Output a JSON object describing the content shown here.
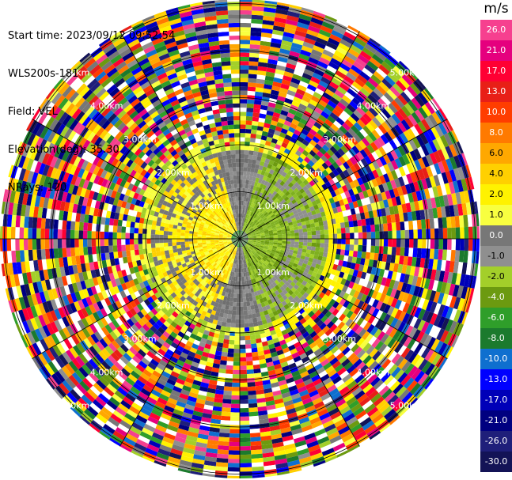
{
  "header": {
    "start_time": "Start time: 2023/09/12 09:52:54",
    "instrument": "WLS200s-181",
    "field": "Field: VEL",
    "elevation": "Elevation(deg): 35.30",
    "nrays": "NRays: 120"
  },
  "colorbar": {
    "unit": "m/s",
    "ticks": [
      "26.0",
      "21.0",
      "17.0",
      "13.0",
      "10.0",
      "8.0",
      "6.0",
      "4.0",
      "2.0",
      "1.0",
      "0.0",
      "-1.0",
      "-2.0",
      "-4.0",
      "-6.0",
      "-8.0",
      "-10.0",
      "-13.0",
      "-17.0",
      "-21.0",
      "-26.0",
      "-30.0"
    ],
    "colors": [
      "#f6408f",
      "#e5007e",
      "#ff0033",
      "#e81f17",
      "#ff3d00",
      "#ff7a00",
      "#ffa800",
      "#ffd000",
      "#fff200",
      "#f8ff40",
      "#777777",
      "#8f8f8f",
      "#a3cf2a",
      "#6c9a10",
      "#2f9e2a",
      "#1b7a2d",
      "#0f6fcf",
      "#0000ff",
      "#0000b8",
      "#000080",
      "#1f1f7a",
      "#131356"
    ]
  },
  "chart_data": {
    "type": "ppi",
    "field": "VEL",
    "units": "m/s",
    "n_rays": 120,
    "elevation_deg": 35.3,
    "range_rings_km": [
      1.0,
      2.0,
      3.0,
      4.0,
      5.0
    ],
    "ring_label": "km",
    "ring_labels": [
      "1.00km",
      "2.00km",
      "3.00km",
      "4.00km",
      "5.00km"
    ],
    "spokes_deg": [
      0,
      30,
      60,
      90,
      120,
      150,
      180,
      210,
      240,
      270,
      300,
      330
    ],
    "inner_zone": {
      "range_km_max": 1.8,
      "pattern": "dipole velocity field: positive (yellow) to west, negative (green) to east, near-zero (gray) transition band"
    },
    "outer_zone": {
      "range_km_min": 2.4,
      "pattern": "noise / multicolor speckle"
    },
    "data_labels": [
      "4.00km"
    ]
  }
}
